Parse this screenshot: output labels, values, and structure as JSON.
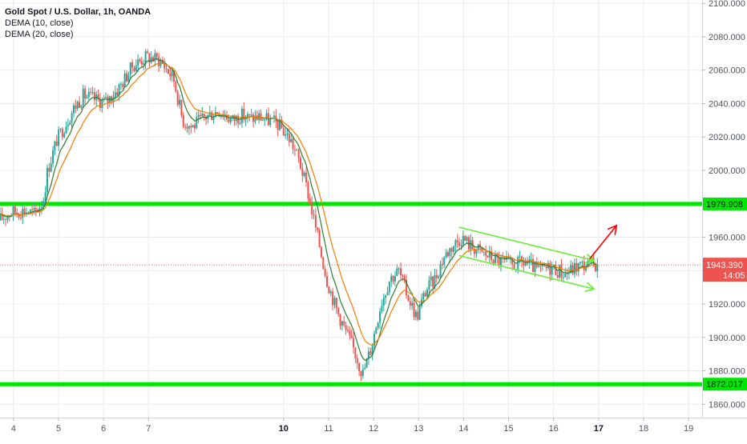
{
  "chart_data": {
    "type": "candlestick",
    "title": "Gold Spot / U.S. Dollar, 1h, OANDA",
    "indicators": [
      "DEMA (10, close)",
      "DEMA (20, close)"
    ],
    "y_ticks": [
      "2100.000",
      "2080.000",
      "2060.000",
      "2040.000",
      "2020.000",
      "2000.000",
      "1980.000",
      "1960.000",
      "1940.000",
      "1920.000",
      "1900.000",
      "1880.000",
      "1860.000"
    ],
    "x_ticks": [
      "4",
      "5",
      "6",
      "7",
      "10",
      "11",
      "12",
      "13",
      "14",
      "15",
      "16",
      "17",
      "18",
      "19"
    ],
    "bold_x_ticks": [
      "10",
      "17"
    ],
    "ylim": [
      1852,
      2102
    ],
    "x_range": [
      3.7,
      19.3
    ],
    "price_series": [
      [
        3.7,
        1970
      ],
      [
        4.0,
        1975
      ],
      [
        4.3,
        1976
      ],
      [
        4.5,
        1974
      ],
      [
        4.7,
        1982
      ],
      [
        4.8,
        2000
      ],
      [
        5.0,
        2018
      ],
      [
        5.2,
        2028
      ],
      [
        5.4,
        2038
      ],
      [
        5.6,
        2045
      ],
      [
        5.9,
        2042
      ],
      [
        6.1,
        2041
      ],
      [
        6.4,
        2050
      ],
      [
        6.7,
        2063
      ],
      [
        7.0,
        2068
      ],
      [
        7.3,
        2066
      ],
      [
        7.6,
        2055
      ],
      [
        7.8,
        2030
      ],
      [
        8.0,
        2026
      ],
      [
        8.3,
        2032
      ],
      [
        8.6,
        2036
      ],
      [
        8.9,
        2030
      ],
      [
        9.1,
        2033
      ],
      [
        9.3,
        2031
      ],
      [
        9.5,
        2032
      ],
      [
        9.7,
        2030
      ],
      [
        9.9,
        2028
      ],
      [
        10.0,
        2025
      ],
      [
        10.2,
        2018
      ],
      [
        10.4,
        2005
      ],
      [
        10.6,
        1985
      ],
      [
        10.8,
        1960
      ],
      [
        11.0,
        1935
      ],
      [
        11.2,
        1918
      ],
      [
        11.4,
        1905
      ],
      [
        11.6,
        1893
      ],
      [
        11.8,
        1878
      ],
      [
        12.0,
        1895
      ],
      [
        12.2,
        1920
      ],
      [
        12.4,
        1935
      ],
      [
        12.6,
        1940
      ],
      [
        12.8,
        1925
      ],
      [
        13.0,
        1912
      ],
      [
        13.2,
        1928
      ],
      [
        13.4,
        1935
      ],
      [
        13.6,
        1948
      ],
      [
        13.8,
        1955
      ],
      [
        14.0,
        1960
      ],
      [
        14.2,
        1955
      ],
      [
        14.5,
        1950
      ],
      [
        14.8,
        1946
      ],
      [
        15.1,
        1943
      ],
      [
        15.4,
        1945
      ],
      [
        15.7,
        1940
      ],
      [
        16.0,
        1942
      ],
      [
        16.3,
        1938
      ],
      [
        16.6,
        1943
      ],
      [
        17.0,
        1944
      ]
    ],
    "horizontal_levels": [
      {
        "value": 1979.908,
        "label": "1979.908",
        "color": "#00e600"
      },
      {
        "value": 1872.017,
        "label": "1872.017",
        "color": "#00e600"
      }
    ],
    "last_price": {
      "value": 1943.39,
      "label": "1943.390",
      "countdown": "14:05",
      "color": "#ef5350"
    },
    "channel": {
      "upper": [
        [
          13.9,
          1966
        ],
        [
          16.9,
          1946
        ]
      ],
      "lower": [
        [
          13.9,
          1949
        ],
        [
          16.9,
          1929
        ]
      ],
      "color": "#66ee33"
    },
    "arrow_up": {
      "from": [
        16.8,
        1947
      ],
      "to": [
        17.4,
        1967
      ],
      "color": "#ff0000"
    },
    "colors": {
      "up": "#26a69a",
      "down": "#ef5350",
      "dema10": "#2e7d32",
      "dema20": "#f57c00",
      "grid": "#e8ecf2",
      "axis_text": "#50535e"
    }
  }
}
